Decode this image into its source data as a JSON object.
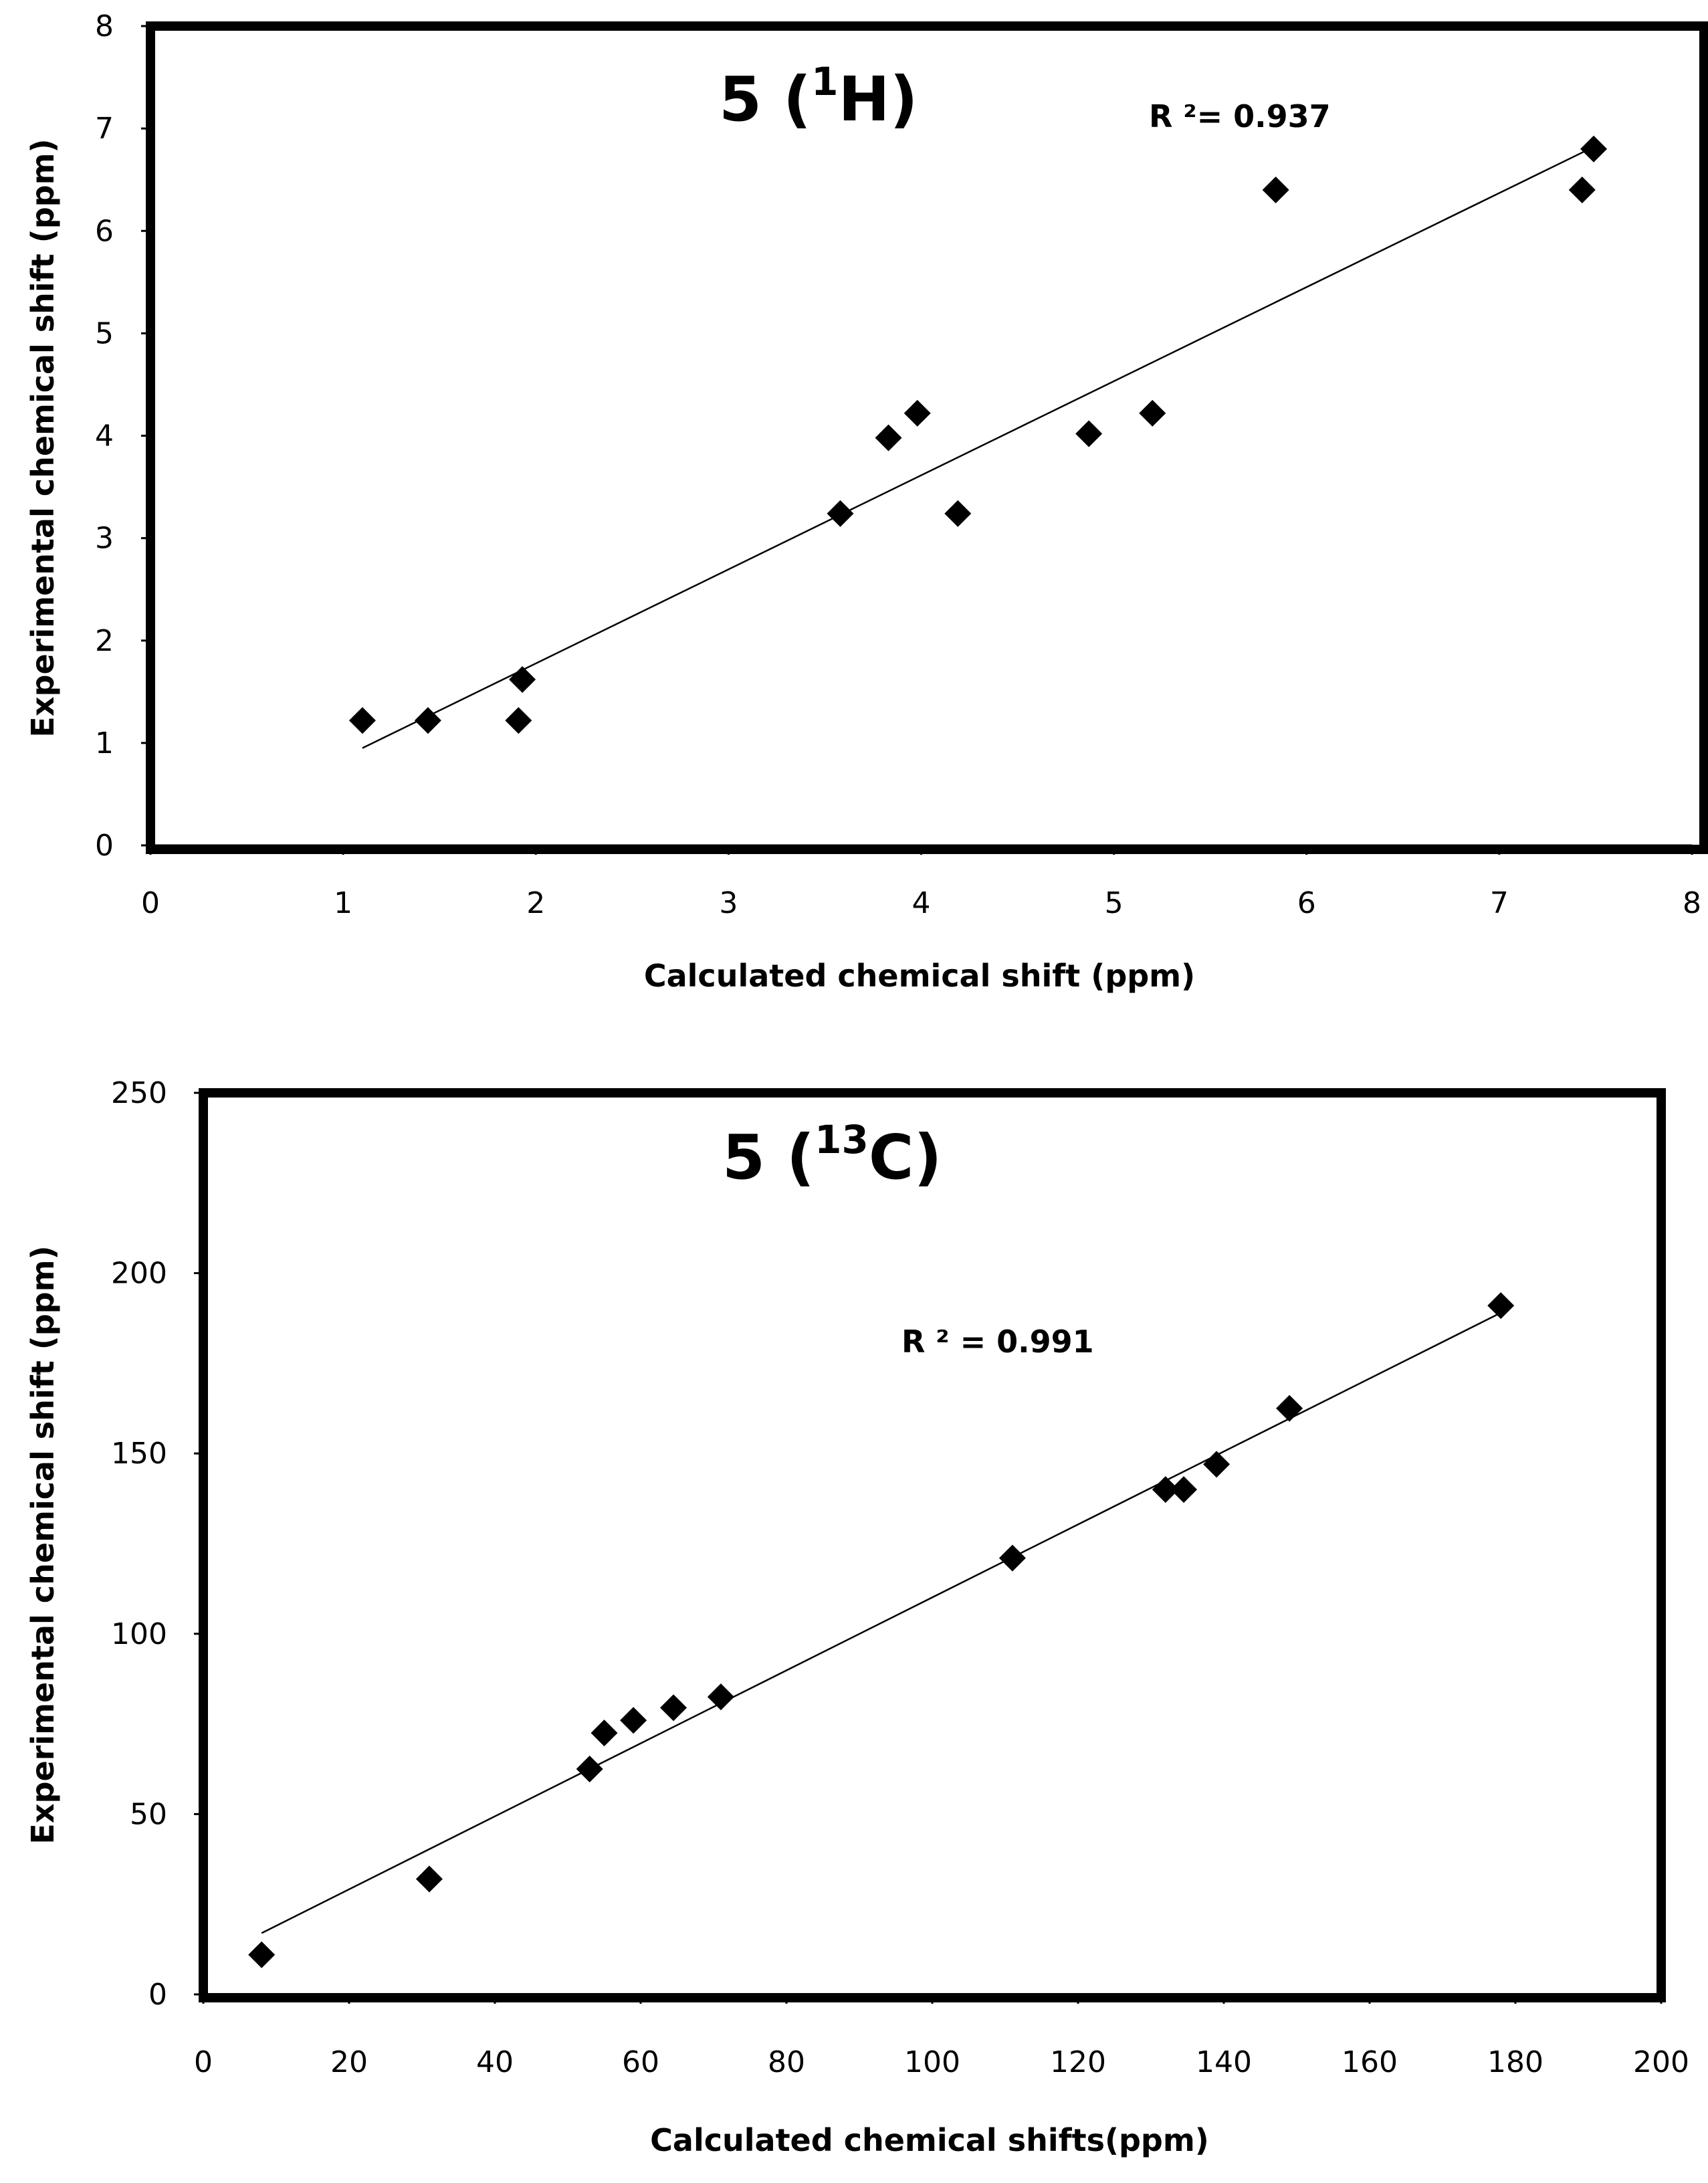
{
  "chart_data": [
    {
      "type": "scatter",
      "title_main": "5 (",
      "title_sup": "1",
      "title_end": "H)",
      "annotation": "R ²= 0.937",
      "xlabel": "Calculated chemical shift (ppm)",
      "ylabel": "Experimental chemical shift (ppm)",
      "xlim": [
        0,
        8
      ],
      "ylim": [
        0,
        8
      ],
      "xticks": [
        0,
        1,
        2,
        3,
        4,
        5,
        6,
        7,
        8
      ],
      "yticks": [
        0,
        1,
        2,
        3,
        4,
        5,
        6,
        7,
        8
      ],
      "xtick_labels": [
        "0",
        "1",
        "2",
        "3",
        "4",
        "5",
        "6",
        "7",
        "8"
      ],
      "ytick_labels": [
        "0",
        "1",
        "2",
        "3",
        "4",
        "5",
        "6",
        "7",
        "8"
      ],
      "marker": "diamond",
      "points": [
        {
          "x": 1.1,
          "y": 1.22
        },
        {
          "x": 1.44,
          "y": 1.22
        },
        {
          "x": 1.91,
          "y": 1.22
        },
        {
          "x": 1.93,
          "y": 1.62
        },
        {
          "x": 3.58,
          "y": 3.24
        },
        {
          "x": 3.83,
          "y": 3.98
        },
        {
          "x": 3.98,
          "y": 4.22
        },
        {
          "x": 4.19,
          "y": 3.24
        },
        {
          "x": 4.87,
          "y": 4.02
        },
        {
          "x": 5.2,
          "y": 4.22
        },
        {
          "x": 5.84,
          "y": 6.4
        },
        {
          "x": 7.43,
          "y": 6.4
        },
        {
          "x": 7.49,
          "y": 6.8
        }
      ],
      "trendline": {
        "x": [
          1.1,
          7.49
        ],
        "y": [
          0.95,
          6.82
        ]
      }
    },
    {
      "type": "scatter",
      "title_main": "5 (",
      "title_sup": "13",
      "title_end": "C)",
      "annotation": "R ² = 0.991",
      "xlabel": "Calculated chemical shifts(ppm)",
      "ylabel": "Experimental chemical shift (ppm)",
      "xlim": [
        0,
        200
      ],
      "ylim": [
        0,
        250
      ],
      "xticks": [
        0,
        20,
        40,
        60,
        80,
        100,
        120,
        140,
        160,
        180,
        200
      ],
      "yticks": [
        0,
        50,
        100,
        150,
        200,
        250
      ],
      "xtick_labels": [
        "0",
        "20",
        "40",
        "60",
        "80",
        "100",
        "120",
        "140",
        "160",
        "180",
        "200"
      ],
      "ytick_labels": [
        "0",
        "50",
        "100",
        "150",
        "200",
        "250"
      ],
      "marker": "diamond",
      "points": [
        {
          "x": 8.0,
          "y": 11.0
        },
        {
          "x": 31.0,
          "y": 32.0
        },
        {
          "x": 53.0,
          "y": 62.5
        },
        {
          "x": 55.0,
          "y": 72.5
        },
        {
          "x": 59.0,
          "y": 76.0
        },
        {
          "x": 64.5,
          "y": 79.5
        },
        {
          "x": 71.0,
          "y": 82.5
        },
        {
          "x": 111.0,
          "y": 121.0
        },
        {
          "x": 132.0,
          "y": 140.0
        },
        {
          "x": 134.5,
          "y": 140.0
        },
        {
          "x": 139.0,
          "y": 147.0
        },
        {
          "x": 149.0,
          "y": 162.5
        },
        {
          "x": 178.0,
          "y": 191.0
        }
      ],
      "trendline": {
        "x": [
          8.0,
          178.0
        ],
        "y": [
          17.0,
          189.0
        ]
      }
    }
  ]
}
